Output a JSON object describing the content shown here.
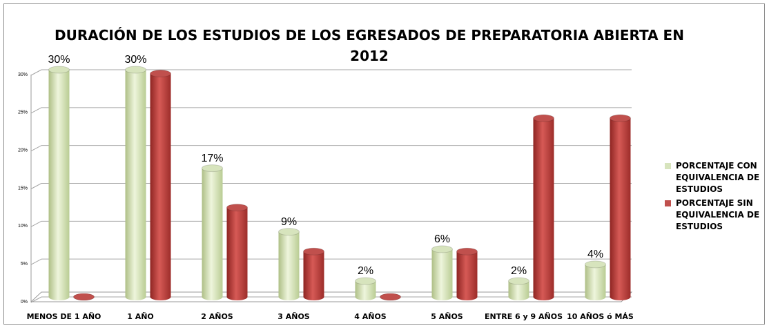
{
  "chart_data": {
    "type": "bar",
    "title": "DURACIÓN DE LOS ESTUDIOS DE LOS EGRESADOS DE PREPARATORIA ABIERTA EN 2012",
    "categories": [
      "MENOS DE 1 AÑO",
      "1 AÑO",
      "2 AÑOS",
      "3 AÑOS",
      "4 AÑOS",
      "5 AÑOS",
      "ENTRE 6 y 9 AÑOS",
      "10 AÑOS ó MÁS"
    ],
    "series": [
      {
        "name": "PORCENTAJE CON EQUIVALENCIA DE ESTUDIOS",
        "color": "#d7e4bd",
        "values": [
          30,
          30,
          17,
          8.6,
          2.1,
          6.3,
          2.1,
          4.3
        ],
        "value_labels": [
          "30%",
          "30%",
          "17%",
          "9%",
          "2%",
          "6%",
          "2%",
          "4%"
        ]
      },
      {
        "name": "PORCENTAJE SIN EQUIVALENCIA DE ESTUDIOS",
        "color": "#c0504d",
        "values": [
          0,
          29.5,
          11.8,
          6,
          0,
          6,
          23.6,
          23.6
        ]
      }
    ],
    "ylim": [
      0,
      30
    ],
    "yticks": [
      {
        "value": 0,
        "label": "0%"
      },
      {
        "value": 5,
        "label": "5%"
      },
      {
        "value": 10,
        "label": "10%"
      },
      {
        "value": 15,
        "label": "15%"
      },
      {
        "value": 20,
        "label": "20%"
      },
      {
        "value": 25,
        "label": "25%"
      },
      {
        "value": 30,
        "label": "30%"
      }
    ],
    "grid": true,
    "legend": "right"
  }
}
